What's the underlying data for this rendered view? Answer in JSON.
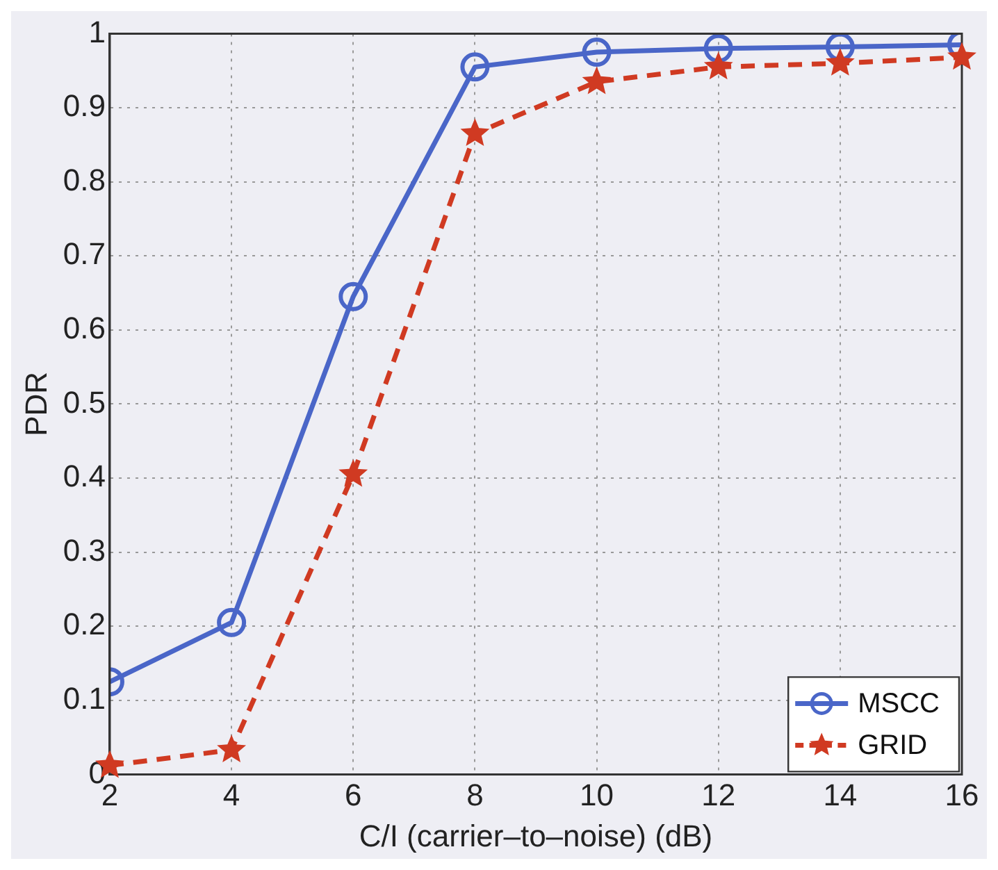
{
  "chart_data": {
    "type": "line",
    "xlabel": "C/I (carrier–to–noise) (dB)",
    "ylabel": "PDR",
    "x": [
      2,
      4,
      6,
      8,
      10,
      12,
      14,
      16
    ],
    "series": [
      {
        "name": "MSCC",
        "color": "#4a66c8",
        "marker": "circle",
        "line_style": "solid",
        "values": [
          0.125,
          0.205,
          0.645,
          0.955,
          0.975,
          0.98,
          0.982,
          0.985
        ]
      },
      {
        "name": "GRID",
        "color": "#d03a22",
        "marker": "star",
        "line_style": "dashed",
        "values": [
          0.012,
          0.033,
          0.405,
          0.865,
          0.935,
          0.955,
          0.96,
          0.968
        ]
      }
    ],
    "xlim": [
      2,
      16
    ],
    "xticks": [
      2,
      4,
      6,
      8,
      10,
      12,
      14,
      16
    ],
    "ylim": [
      0,
      1
    ],
    "yticks": [
      0,
      0.1,
      0.2,
      0.3,
      0.4,
      0.5,
      0.6,
      0.7,
      0.8,
      0.9,
      1
    ],
    "grid": true,
    "legend": "bottom right"
  }
}
